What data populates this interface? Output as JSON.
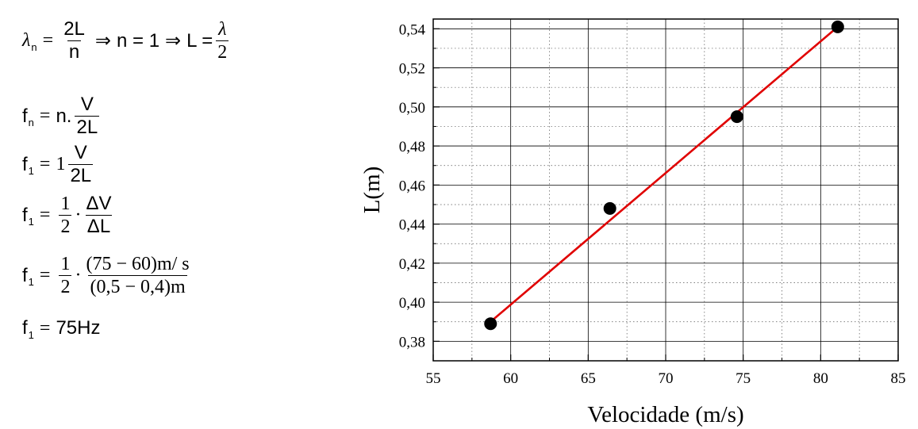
{
  "equations": {
    "eq1": {
      "lambda": "λ",
      "sub_n": "n",
      "eq": "=",
      "num": "2L",
      "den": "n",
      "arrow1": "⇒",
      "mid": "n = 1",
      "arrow2": "⇒",
      "lhs2": "L =",
      "num2": "λ",
      "den2": "2"
    },
    "eq2": {
      "f": "f",
      "sub": "n",
      "eq": "=",
      "pre": "n.",
      "num": "V",
      "den": "2L"
    },
    "eq3": {
      "f": "f",
      "sub": "1",
      "eq": "=",
      "pre": "1",
      "num": "V",
      "den": "2L"
    },
    "eq4": {
      "f": "f",
      "sub": "1",
      "eq": "=",
      "num1": "1",
      "den1": "2",
      "dot": "·",
      "num2": "ΔV",
      "den2": "ΔL"
    },
    "eq5": {
      "f": "f",
      "sub": "1",
      "eq": "=",
      "num1": "1",
      "den1": "2",
      "dot": "·",
      "num2": "(75 − 60)m/ s",
      "den2": "(0,5 − 0,4)m"
    },
    "eq6": {
      "f": "f",
      "sub": "1",
      "eq": "=",
      "rhs": "75Hz"
    }
  },
  "chart_data": {
    "type": "scatter",
    "xlabel": "Velocidade (m/s)",
    "ylabel": "L(m)",
    "xlim": [
      55,
      85
    ],
    "ylim": [
      0.37,
      0.545
    ],
    "x_ticks": [
      55,
      60,
      65,
      70,
      75,
      80,
      85
    ],
    "x_tick_labels": [
      "55",
      "60",
      "65",
      "70",
      "75",
      "80",
      "85"
    ],
    "y_ticks": [
      0.38,
      0.4,
      0.42,
      0.44,
      0.46,
      0.48,
      0.5,
      0.52,
      0.54
    ],
    "y_tick_labels": [
      "0,38",
      "0,40",
      "0,42",
      "0,44",
      "0,46",
      "0,48",
      "0,50",
      "0,52",
      "0,54"
    ],
    "grid": true,
    "points": [
      {
        "x": 58.7,
        "y": 0.389
      },
      {
        "x": 66.4,
        "y": 0.448
      },
      {
        "x": 74.6,
        "y": 0.495
      },
      {
        "x": 81.1,
        "y": 0.541
      }
    ],
    "fit_line": {
      "x": [
        58.7,
        81.1
      ],
      "y": [
        0.39,
        0.541
      ]
    },
    "point_color": "#000000",
    "line_color": "#e00000"
  }
}
